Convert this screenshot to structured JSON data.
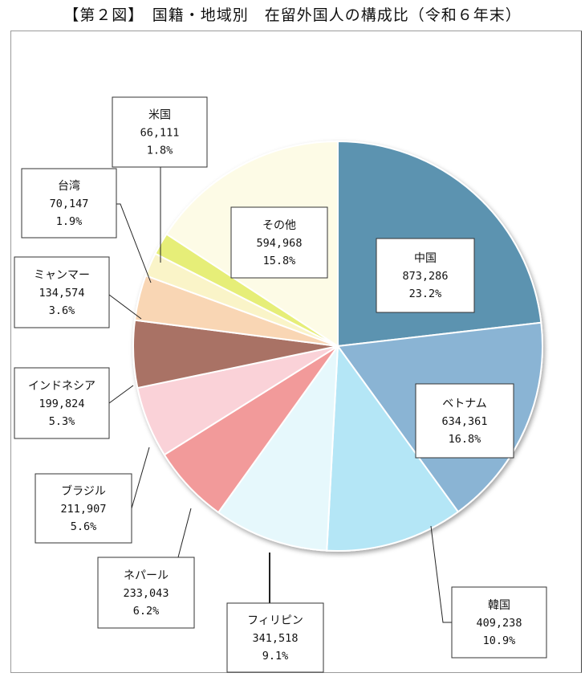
{
  "title": "【第２図】　国籍・地域別　在留外国人の構成比（令和６年末）",
  "chart_data": {
    "type": "pie",
    "title": "【第２図】　国籍・地域別　在留外国人の構成比（令和６年末）",
    "start": "12 o'clock",
    "direction": "clockwise",
    "slices": [
      {
        "name": "中国",
        "value": 873286,
        "value_label": "873,286",
        "percent": 23.2,
        "percent_label": "23.2%",
        "color": "#5b93b0"
      },
      {
        "name": "ベトナム",
        "value": 634361,
        "value_label": "634,361",
        "percent": 16.8,
        "percent_label": "16.8%",
        "color": "#8ab4d4"
      },
      {
        "name": "韓国",
        "value": 409238,
        "value_label": "409,238",
        "percent": 10.9,
        "percent_label": "10.9%",
        "color": "#b4e6f6"
      },
      {
        "name": "フィリピン",
        "value": 341518,
        "value_label": "341,518",
        "percent": 9.1,
        "percent_label": "9.1%",
        "color": "#e6f8fc"
      },
      {
        "name": "ネパール",
        "value": 233043,
        "value_label": "233,043",
        "percent": 6.2,
        "percent_label": "6.2%",
        "color": "#f29a9a"
      },
      {
        "name": "ブラジル",
        "value": 211907,
        "value_label": "211,907",
        "percent": 5.6,
        "percent_label": "5.6%",
        "color": "#fad2d8"
      },
      {
        "name": "インドネシア",
        "value": 199824,
        "value_label": "199,824",
        "percent": 5.3,
        "percent_label": "5.3%",
        "color": "#a97265"
      },
      {
        "name": "ミャンマー",
        "value": 134574,
        "value_label": "134,574",
        "percent": 3.6,
        "percent_label": "3.6%",
        "color": "#f9d6b4"
      },
      {
        "name": "台湾",
        "value": 70147,
        "value_label": "70,147",
        "percent": 1.9,
        "percent_label": "1.9%",
        "color": "#faf4c8"
      },
      {
        "name": "米国",
        "value": 66111,
        "value_label": "66,111",
        "percent": 1.8,
        "percent_label": "1.8%",
        "color": "#e6ee78"
      },
      {
        "name": "その他",
        "value": 594968,
        "value_label": "594,968",
        "percent": 15.8,
        "percent_label": "15.8%",
        "color": "#fdfbe6"
      }
    ]
  }
}
